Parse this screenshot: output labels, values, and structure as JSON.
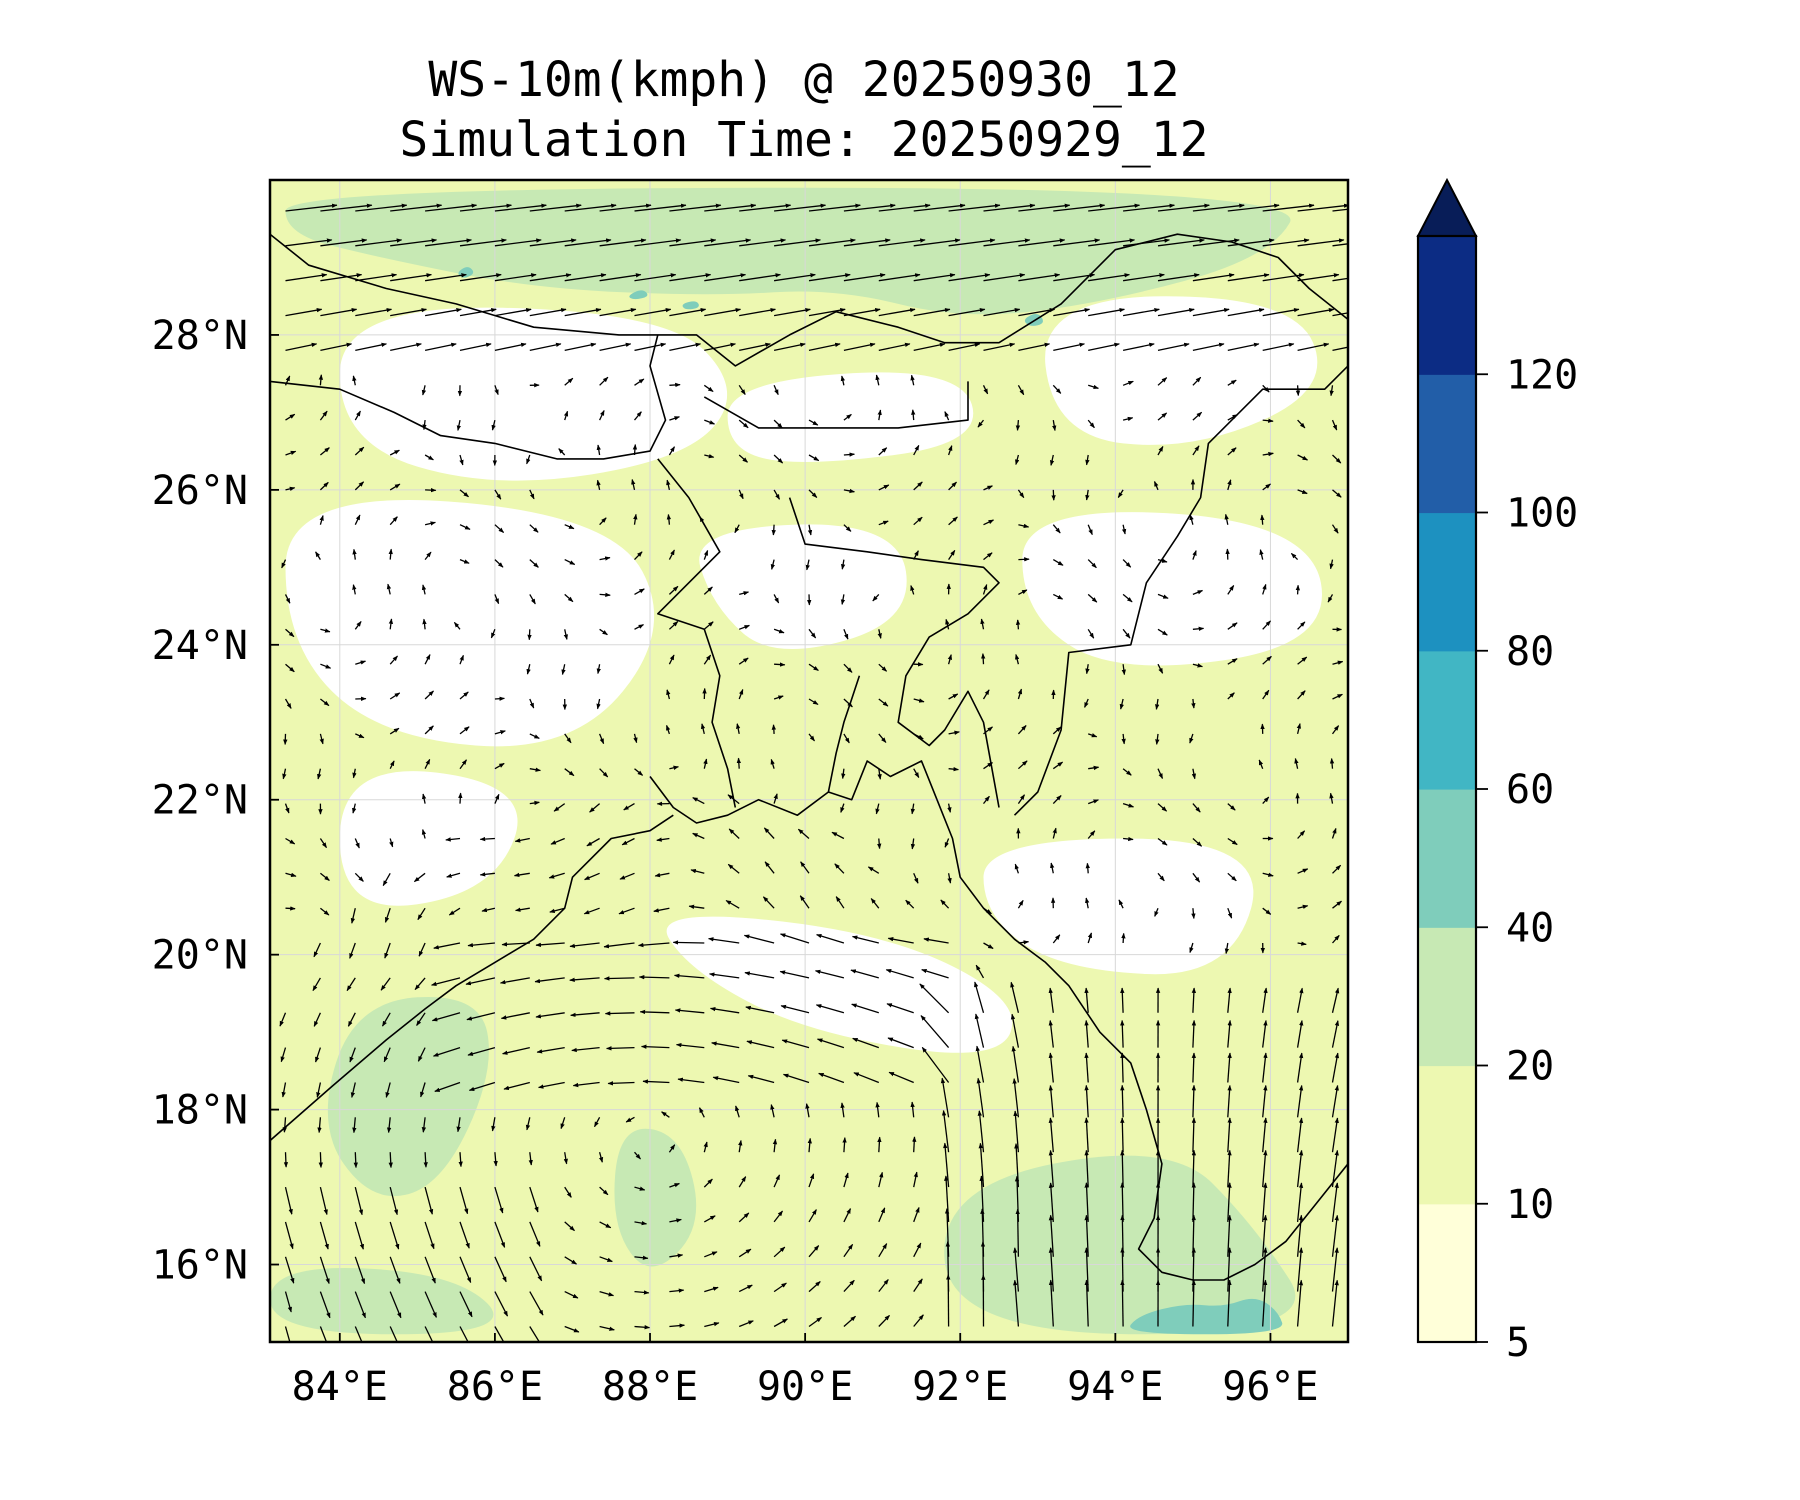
{
  "title": "WS-10m(kmph) @ 20250930_12",
  "subtitle": "Simulation Time: 20250929_12",
  "map": {
    "lon_range": [
      83.1,
      97.0
    ],
    "lat_range": [
      15.0,
      30.0
    ],
    "lon_ticks": [
      {
        "value": 84,
        "label": "84°E"
      },
      {
        "value": 86,
        "label": "86°E"
      },
      {
        "value": 88,
        "label": "88°E"
      },
      {
        "value": 90,
        "label": "90°E"
      },
      {
        "value": 92,
        "label": "92°E"
      },
      {
        "value": 94,
        "label": "94°E"
      },
      {
        "value": 96,
        "label": "96°E"
      }
    ],
    "lat_ticks": [
      {
        "value": 28,
        "label": "28°N"
      },
      {
        "value": 26,
        "label": "26°N"
      },
      {
        "value": 24,
        "label": "24°N"
      },
      {
        "value": 22,
        "label": "22°N"
      },
      {
        "value": 20,
        "label": "20°N"
      },
      {
        "value": 18,
        "label": "18°N"
      },
      {
        "value": 16,
        "label": "16°N"
      }
    ]
  },
  "colorbar": {
    "levels": [
      5,
      10,
      20,
      40,
      60,
      80,
      100,
      120
    ],
    "labels": [
      "5",
      "10",
      "20",
      "40",
      "60",
      "80",
      "100",
      "120"
    ],
    "colors": [
      "#ffffd9",
      "#edf8b1",
      "#c7e9b4",
      "#7fcdbb",
      "#41b6c4",
      "#1d91c0",
      "#225ea8",
      "#0c2c84"
    ],
    "extend": "max",
    "extend_color": "#081d58"
  },
  "chart_data": {
    "type": "contour-vector-map",
    "variable": "WS-10m(kmph)",
    "regions": [
      {
        "name": "calm-patches",
        "speed_class": "5-10",
        "color": "#ffffff",
        "polygons": [
          [
            [
              84.0,
              28.4
            ],
            [
              88.2,
              28.3
            ],
            [
              89.2,
              27.3
            ],
            [
              88.5,
              26.4
            ],
            [
              86.0,
              26.0
            ],
            [
              84.0,
              26.6
            ]
          ],
          [
            [
              89.0,
              27.4
            ],
            [
              92.0,
              27.6
            ],
            [
              92.3,
              26.6
            ],
            [
              90.0,
              26.3
            ],
            [
              89.0,
              26.5
            ]
          ],
          [
            [
              93.0,
              28.5
            ],
            [
              96.3,
              28.5
            ],
            [
              96.8,
              27.3
            ],
            [
              95.0,
              26.5
            ],
            [
              93.2,
              26.7
            ]
          ],
          [
            [
              83.3,
              26.0
            ],
            [
              87.5,
              25.7
            ],
            [
              88.3,
              24.2
            ],
            [
              87.0,
              22.6
            ],
            [
              84.5,
              22.8
            ],
            [
              83.3,
              24.0
            ]
          ],
          [
            [
              88.5,
              25.5
            ],
            [
              91.2,
              25.6
            ],
            [
              91.4,
              24.3
            ],
            [
              89.6,
              23.8
            ],
            [
              88.8,
              24.5
            ]
          ],
          [
            [
              92.8,
              25.8
            ],
            [
              96.5,
              25.6
            ],
            [
              96.8,
              24.0
            ],
            [
              94.0,
              23.6
            ],
            [
              92.8,
              24.4
            ]
          ],
          [
            [
              84.0,
              22.5
            ],
            [
              86.5,
              22.2
            ],
            [
              86.0,
              20.8
            ],
            [
              84.0,
              20.5
            ]
          ],
          [
            [
              92.3,
              21.5
            ],
            [
              96.0,
              21.5
            ],
            [
              95.5,
              19.7
            ],
            [
              93.3,
              19.8
            ],
            [
              92.3,
              20.5
            ]
          ],
          [
            [
              88.0,
              20.6
            ],
            [
              91.0,
              20.3
            ],
            [
              92.8,
              19.4
            ],
            [
              92.5,
              18.6
            ],
            [
              90.0,
              19.0
            ],
            [
              88.5,
              19.8
            ]
          ]
        ]
      },
      {
        "name": "moderate-20-40",
        "speed_class": "20-40",
        "color": "#c7e9b4",
        "polygons": [
          [
            [
              83.3,
              29.9
            ],
            [
              96.5,
              29.9
            ],
            [
              96.0,
              29.0
            ],
            [
              93.8,
              28.4
            ],
            [
              92.0,
              28.2
            ],
            [
              90.4,
              28.6
            ],
            [
              88.8,
              28.5
            ],
            [
              86.5,
              28.6
            ],
            [
              84.5,
              29.0
            ],
            [
              83.3,
              29.3
            ]
          ],
          [
            [
              84.2,
              19.4
            ],
            [
              85.8,
              19.5
            ],
            [
              86.0,
              18.5
            ],
            [
              85.3,
              17.0
            ],
            [
              84.4,
              16.8
            ],
            [
              83.7,
              17.8
            ]
          ],
          [
            [
              87.6,
              17.8
            ],
            [
              88.4,
              17.7
            ],
            [
              88.7,
              16.5
            ],
            [
              88.0,
              15.8
            ],
            [
              87.5,
              16.5
            ]
          ],
          [
            [
              91.7,
              17.0
            ],
            [
              94.7,
              17.6
            ],
            [
              95.8,
              16.5
            ],
            [
              96.7,
              15.1
            ],
            [
              91.9,
              15.1
            ]
          ],
          [
            [
              83.1,
              16.0
            ],
            [
              85.5,
              15.9
            ],
            [
              86.3,
              15.1
            ],
            [
              83.1,
              15.1
            ]
          ]
        ]
      },
      {
        "name": "strong-40-60",
        "speed_class": "40-60",
        "color": "#7fcdbb",
        "polygons": [
          [
            [
              94.1,
              15.1
            ],
            [
              94.3,
              15.35
            ],
            [
              94.9,
              15.5
            ],
            [
              95.4,
              15.45
            ],
            [
              95.8,
              15.6
            ],
            [
              96.1,
              15.4
            ],
            [
              96.2,
              15.1
            ]
          ],
          [
            [
              87.7,
              28.5
            ],
            [
              87.9,
              28.6
            ],
            [
              88.0,
              28.5
            ],
            [
              87.8,
              28.45
            ]
          ],
          [
            [
              88.4,
              28.4
            ],
            [
              88.6,
              28.45
            ],
            [
              88.65,
              28.35
            ],
            [
              88.45,
              28.32
            ]
          ],
          [
            [
              92.8,
              28.2
            ],
            [
              93.0,
              28.3
            ],
            [
              93.1,
              28.15
            ],
            [
              92.9,
              28.1
            ]
          ],
          [
            [
              85.5,
              28.8
            ],
            [
              85.65,
              28.9
            ],
            [
              85.75,
              28.8
            ],
            [
              85.6,
              28.72
            ]
          ]
        ]
      }
    ],
    "borders": [
      {
        "name": "coastline-east-india",
        "points": [
          [
            83.1,
            17.6
          ],
          [
            83.9,
            18.3
          ],
          [
            84.6,
            18.9
          ],
          [
            85.1,
            19.3
          ],
          [
            85.5,
            19.6
          ],
          [
            86.0,
            19.9
          ],
          [
            86.5,
            20.2
          ],
          [
            86.9,
            20.6
          ],
          [
            87.0,
            21.0
          ],
          [
            87.5,
            21.5
          ],
          [
            88.0,
            21.6
          ],
          [
            88.3,
            21.8
          ]
        ]
      },
      {
        "name": "coastline-sundarbans-delta",
        "points": [
          [
            88.0,
            22.3
          ],
          [
            88.3,
            21.9
          ],
          [
            88.6,
            21.7
          ],
          [
            89.0,
            21.8
          ],
          [
            89.4,
            22.0
          ],
          [
            89.9,
            21.8
          ],
          [
            90.3,
            22.1
          ],
          [
            90.6,
            22.0
          ],
          [
            90.8,
            22.5
          ],
          [
            91.1,
            22.3
          ],
          [
            91.5,
            22.5
          ],
          [
            91.7,
            22.0
          ]
        ]
      },
      {
        "name": "meghna-estuary",
        "points": [
          [
            90.3,
            22.1
          ],
          [
            90.4,
            22.6
          ],
          [
            90.5,
            23.0
          ],
          [
            90.6,
            23.3
          ],
          [
            90.7,
            23.6
          ]
        ]
      },
      {
        "name": "coastline-bangladesh-myanmar",
        "points": [
          [
            91.7,
            22.0
          ],
          [
            91.9,
            21.5
          ],
          [
            92.0,
            21.0
          ],
          [
            92.3,
            20.6
          ],
          [
            92.7,
            20.2
          ],
          [
            93.1,
            19.9
          ],
          [
            93.4,
            19.6
          ],
          [
            93.8,
            19.0
          ],
          [
            94.2,
            18.6
          ],
          [
            94.4,
            18.0
          ],
          [
            94.6,
            17.3
          ],
          [
            94.5,
            16.6
          ],
          [
            94.3,
            16.2
          ],
          [
            94.6,
            15.9
          ],
          [
            95.0,
            15.8
          ],
          [
            95.4,
            15.8
          ],
          [
            95.8,
            16.0
          ],
          [
            96.2,
            16.3
          ],
          [
            96.6,
            16.8
          ],
          [
            97.0,
            17.3
          ]
        ]
      },
      {
        "name": "india-nepal-border",
        "points": [
          [
            83.1,
            27.4
          ],
          [
            84.0,
            27.3
          ],
          [
            84.7,
            27.0
          ],
          [
            85.3,
            26.7
          ],
          [
            86.0,
            26.6
          ],
          [
            86.8,
            26.4
          ],
          [
            87.4,
            26.4
          ],
          [
            88.0,
            26.5
          ],
          [
            88.2,
            26.9
          ],
          [
            88.0,
            27.6
          ],
          [
            88.1,
            28.0
          ]
        ]
      },
      {
        "name": "himalaya-north-border",
        "points": [
          [
            83.1,
            29.3
          ],
          [
            83.6,
            28.9
          ],
          [
            84.6,
            28.6
          ],
          [
            85.5,
            28.4
          ],
          [
            86.5,
            28.1
          ],
          [
            87.6,
            28.0
          ],
          [
            88.1,
            28.0
          ],
          [
            88.6,
            28.0
          ],
          [
            89.1,
            27.6
          ],
          [
            89.8,
            28.0
          ],
          [
            90.4,
            28.3
          ],
          [
            91.2,
            28.1
          ],
          [
            91.8,
            27.9
          ],
          [
            92.5,
            27.9
          ],
          [
            93.3,
            28.4
          ],
          [
            94.0,
            29.1
          ],
          [
            94.8,
            29.3
          ],
          [
            95.5,
            29.2
          ],
          [
            96.1,
            29.0
          ],
          [
            96.5,
            28.6
          ],
          [
            97.0,
            28.2
          ]
        ]
      },
      {
        "name": "bhutan-border",
        "points": [
          [
            88.7,
            27.2
          ],
          [
            89.4,
            26.8
          ],
          [
            90.4,
            26.8
          ],
          [
            91.2,
            26.8
          ],
          [
            92.1,
            26.9
          ],
          [
            92.1,
            27.4
          ]
        ]
      },
      {
        "name": "india-bangladesh-west-border",
        "points": [
          [
            88.1,
            26.4
          ],
          [
            88.5,
            25.9
          ],
          [
            88.9,
            25.2
          ],
          [
            88.5,
            24.8
          ],
          [
            88.1,
            24.4
          ],
          [
            88.7,
            24.2
          ],
          [
            88.9,
            23.6
          ],
          [
            88.8,
            23.0
          ],
          [
            89.0,
            22.4
          ],
          [
            89.1,
            21.9
          ]
        ]
      },
      {
        "name": "india-bangladesh-north-border",
        "points": [
          [
            89.8,
            25.9
          ],
          [
            90.0,
            25.3
          ],
          [
            90.8,
            25.2
          ],
          [
            91.5,
            25.1
          ],
          [
            92.3,
            25.0
          ],
          [
            92.5,
            24.8
          ],
          [
            92.1,
            24.4
          ],
          [
            91.6,
            24.1
          ],
          [
            91.3,
            23.6
          ],
          [
            91.2,
            23.0
          ],
          [
            91.6,
            22.7
          ],
          [
            91.8,
            22.9
          ],
          [
            92.1,
            23.4
          ],
          [
            92.3,
            23.0
          ],
          [
            92.5,
            21.9
          ]
        ]
      },
      {
        "name": "india-myanmar-border",
        "points": [
          [
            92.7,
            21.8
          ],
          [
            93.0,
            22.1
          ],
          [
            93.3,
            22.9
          ],
          [
            93.4,
            23.9
          ],
          [
            94.2,
            24.0
          ],
          [
            94.4,
            24.8
          ],
          [
            94.8,
            25.4
          ],
          [
            95.1,
            25.9
          ],
          [
            95.2,
            26.6
          ],
          [
            95.9,
            27.3
          ],
          [
            96.7,
            27.3
          ],
          [
            97.0,
            27.6
          ]
        ]
      }
    ],
    "wind": "vector field (arrows) of 10-m wind; anticyclonic circulation over the central Bay of Bengal (~88°E, 17.5°N), strong southerly flow toward Myanmar coast (92–96°E, 15–18°N), easterly flow across northern Bay (~86–91°E, 18–20°N), southwesterly flow along the Himalayan foothills (85–90°E, 28–29.5°N)"
  }
}
